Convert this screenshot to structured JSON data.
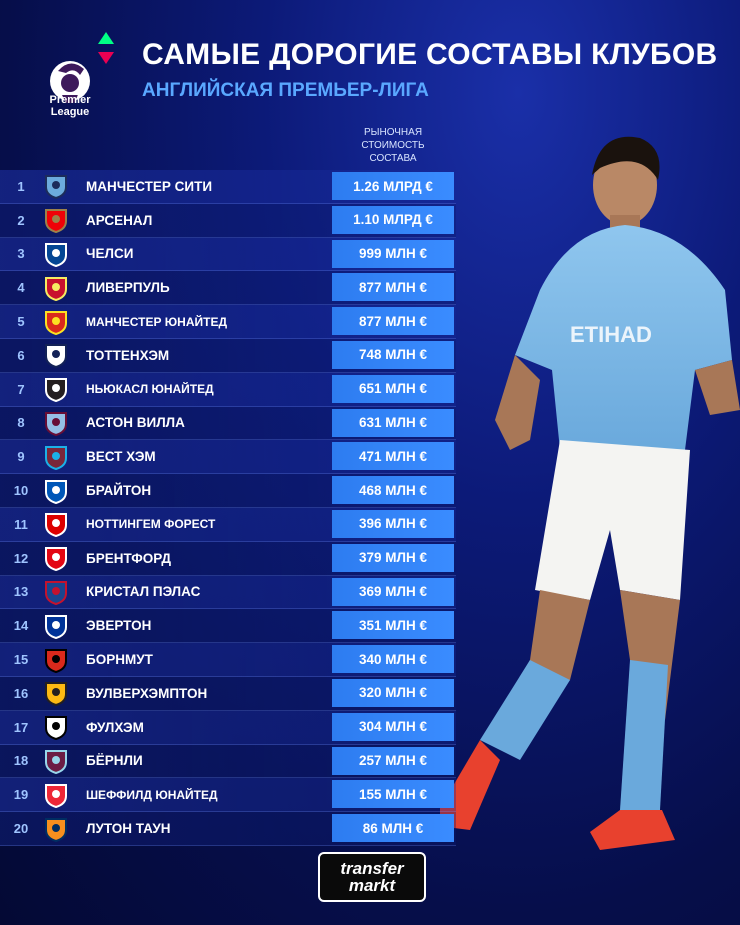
{
  "header": {
    "title": "САМЫЕ ДОРОГИЕ СОСТАВЫ КЛУБОВ",
    "subtitle": "АНГЛИЙСКАЯ ПРЕМЬЕР-ЛИГА",
    "league_logo_text": [
      "Premier",
      "League"
    ],
    "column_header": [
      "РЫНОЧНАЯ",
      "СТОИМОСТЬ",
      "СОСТАВА"
    ]
  },
  "colors": {
    "accent_value": "#3a8cff",
    "subtitle": "#5aa8ff",
    "background": "#0c1a78"
  },
  "rows": [
    {
      "rank": "1",
      "club": "МАНЧЕСТЕР СИТИ",
      "value": "1.26 МЛРД €",
      "crest": "man-city-crest",
      "c1": "#6cabdd",
      "c2": "#1c2c5b"
    },
    {
      "rank": "2",
      "club": "АРСЕНАЛ",
      "value": "1.10 МЛРД €",
      "crest": "arsenal-crest",
      "c1": "#ef0107",
      "c2": "#9c824a"
    },
    {
      "rank": "3",
      "club": "ЧЕЛСИ",
      "value": "999 МЛН €",
      "crest": "chelsea-crest",
      "c1": "#034694",
      "c2": "#ffffff"
    },
    {
      "rank": "4",
      "club": "ЛИВЕРПУЛЬ",
      "value": "877 МЛН €",
      "crest": "liverpool-crest",
      "c1": "#c8102e",
      "c2": "#f6eb61"
    },
    {
      "rank": "5",
      "club": "МАНЧЕСТЕР ЮНАЙТЕД",
      "value": "877 МЛН €",
      "crest": "man-utd-crest",
      "c1": "#da291c",
      "c2": "#fbe122",
      "small": true
    },
    {
      "rank": "6",
      "club": "ТОТТЕНХЭМ",
      "value": "748 МЛН €",
      "crest": "tottenham-crest",
      "c1": "#ffffff",
      "c2": "#132257"
    },
    {
      "rank": "7",
      "club": "НЬЮКАСЛ ЮНАЙТЕД",
      "value": "651 МЛН €",
      "crest": "newcastle-crest",
      "c1": "#241f20",
      "c2": "#ffffff",
      "small": true
    },
    {
      "rank": "8",
      "club": "АСТОН ВИЛЛА",
      "value": "631 МЛН €",
      "crest": "aston-villa-crest",
      "c1": "#95bfe5",
      "c2": "#670e36"
    },
    {
      "rank": "9",
      "club": "ВЕСТ ХЭМ",
      "value": "471 МЛН €",
      "crest": "west-ham-crest",
      "c1": "#7a263a",
      "c2": "#1bb1e7"
    },
    {
      "rank": "10",
      "club": "БРАЙТОН",
      "value": "468 МЛН €",
      "crest": "brighton-crest",
      "c1": "#0057b8",
      "c2": "#ffffff"
    },
    {
      "rank": "11",
      "club": "НОТТИНГЕМ ФОРЕСТ",
      "value": "396 МЛН €",
      "crest": "nottingham-forest-crest",
      "c1": "#dd0000",
      "c2": "#ffffff",
      "small": true
    },
    {
      "rank": "12",
      "club": "БРЕНТФОРД",
      "value": "379 МЛН €",
      "crest": "brentford-crest",
      "c1": "#e30613",
      "c2": "#ffffff"
    },
    {
      "rank": "13",
      "club": "КРИСТАЛ ПЭЛАС",
      "value": "369 МЛН €",
      "crest": "crystal-palace-crest",
      "c1": "#1b458f",
      "c2": "#c4122e"
    },
    {
      "rank": "14",
      "club": "ЭВЕРТОН",
      "value": "351 МЛН €",
      "crest": "everton-crest",
      "c1": "#003399",
      "c2": "#ffffff"
    },
    {
      "rank": "15",
      "club": "БОРНМУТ",
      "value": "340 МЛН €",
      "crest": "bournemouth-crest",
      "c1": "#da291c",
      "c2": "#000000"
    },
    {
      "rank": "16",
      "club": "ВУЛВЕРХЭМПТОН",
      "value": "320 МЛН €",
      "crest": "wolves-crest",
      "c1": "#fdb913",
      "c2": "#231f20"
    },
    {
      "rank": "17",
      "club": "ФУЛХЭМ",
      "value": "304 МЛН €",
      "crest": "fulham-crest",
      "c1": "#ffffff",
      "c2": "#000000"
    },
    {
      "rank": "18",
      "club": "БЁРНЛИ",
      "value": "257 МЛН €",
      "crest": "burnley-crest",
      "c1": "#6c1d45",
      "c2": "#99d6ea"
    },
    {
      "rank": "19",
      "club": "ШЕФФИЛД ЮНАЙТЕД",
      "value": "155 МЛН €",
      "crest": "sheffield-utd-crest",
      "c1": "#ee2737",
      "c2": "#ffffff",
      "small": true
    },
    {
      "rank": "20",
      "club": "ЛУТОН ТАУН",
      "value": "86 МЛН €",
      "crest": "luton-crest",
      "c1": "#f78f1e",
      "c2": "#002d62"
    }
  ],
  "footer": {
    "brand_lines": [
      "transfer",
      "markt"
    ]
  }
}
